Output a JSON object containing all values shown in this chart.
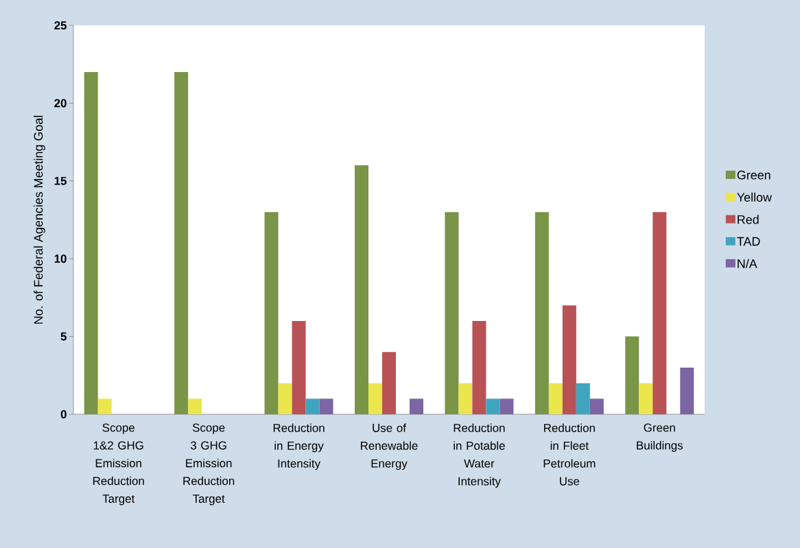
{
  "chart_data": {
    "type": "bar",
    "ylabel": "No. of Federal Agencies Meeting Goal",
    "categories": [
      "Scope 1&2 GHG Emission Reduction Target",
      "Scope 3 GHG Emission Reduction Target",
      "Reduction in Energy Intensity",
      "Use of Renewable Energy",
      "Reduction in Potable Water Intensity",
      "Reduction in Fleet Petroleum Use",
      "Green Buildings"
    ],
    "series": [
      {
        "name": "Green",
        "color": "#7a9448",
        "values": [
          22,
          22,
          13,
          16,
          13,
          13,
          5
        ]
      },
      {
        "name": "Yellow",
        "color": "#ebe64c",
        "values": [
          1,
          1,
          2,
          2,
          2,
          2,
          2
        ]
      },
      {
        "name": "Red",
        "color": "#b95255",
        "values": [
          0,
          0,
          6,
          4,
          6,
          7,
          13
        ]
      },
      {
        "name": "TAD",
        "color": "#3fa5bf",
        "values": [
          0,
          0,
          1,
          0,
          1,
          2,
          0
        ]
      },
      {
        "name": "N/A",
        "color": "#7b65a3",
        "values": [
          0,
          0,
          1,
          1,
          1,
          1,
          3
        ]
      }
    ],
    "ylim": [
      0,
      25
    ],
    "yticks": [
      0,
      5,
      10,
      15,
      20,
      25
    ],
    "grid": false,
    "legend": "right"
  }
}
